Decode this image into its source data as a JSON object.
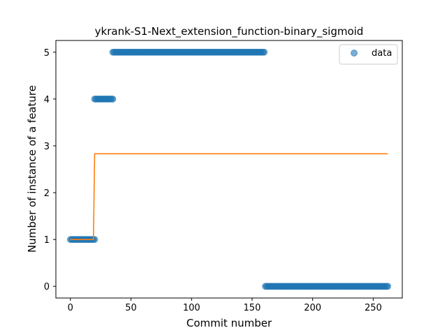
{
  "chart_data": {
    "type": "scatter",
    "title": "ykrank-S1-Next_extension_function-binary_sigmoid",
    "xlabel": "Commit number",
    "ylabel": "Number of instance of a feature",
    "xlim": [
      -12,
      274
    ],
    "ylim": [
      -0.25,
      5.25
    ],
    "xticks": [
      0,
      50,
      100,
      150,
      200,
      250
    ],
    "yticks": [
      0,
      1,
      2,
      3,
      4,
      5
    ],
    "legend": {
      "position": "top-right",
      "entries": [
        "data"
      ]
    },
    "grid": false,
    "colors": {
      "data": "#1f77b4",
      "fit": "#ff7f0e"
    },
    "series": [
      {
        "name": "data",
        "kind": "scatter",
        "segments": [
          {
            "x_start": 0,
            "x_end": 20,
            "y": 1
          },
          {
            "x_start": 20,
            "x_end": 35,
            "y": 4
          },
          {
            "x_start": 35,
            "x_end": 160,
            "y": 5
          },
          {
            "x_start": 161,
            "x_end": 262,
            "y": 0
          }
        ]
      },
      {
        "kind": "line",
        "x": [
          0,
          19,
          20,
          262
        ],
        "y": [
          1.0,
          1.0,
          2.83,
          2.83
        ]
      }
    ]
  }
}
